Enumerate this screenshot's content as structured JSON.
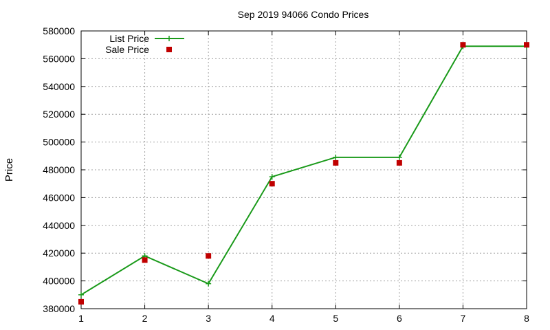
{
  "chart_data": {
    "type": "line",
    "title": "Sep 2019 94066 Condo Prices",
    "xlabel": "",
    "ylabel": "Price",
    "x": [
      1,
      2,
      3,
      4,
      5,
      6,
      7,
      8
    ],
    "xlim": [
      1,
      8
    ],
    "ylim": [
      380000,
      580000
    ],
    "xticks": [
      "1",
      "2",
      "3",
      "4",
      "5",
      "6",
      "7",
      "8"
    ],
    "yticks": [
      "380000",
      "400000",
      "420000",
      "440000",
      "460000",
      "480000",
      "500000",
      "520000",
      "540000",
      "560000",
      "580000"
    ],
    "grid": true,
    "legend_position": "top-left",
    "series": [
      {
        "name": "List Price",
        "style": "linespoints",
        "marker": "plus",
        "color": "#1a9a1a",
        "values": [
          390000,
          418000,
          398000,
          475000,
          489000,
          489000,
          569000,
          569000
        ]
      },
      {
        "name": "Sale Price",
        "style": "points",
        "marker": "square",
        "color": "#c00000",
        "values": [
          385000,
          415000,
          418000,
          470000,
          485000,
          485000,
          570000,
          570000
        ]
      }
    ]
  }
}
